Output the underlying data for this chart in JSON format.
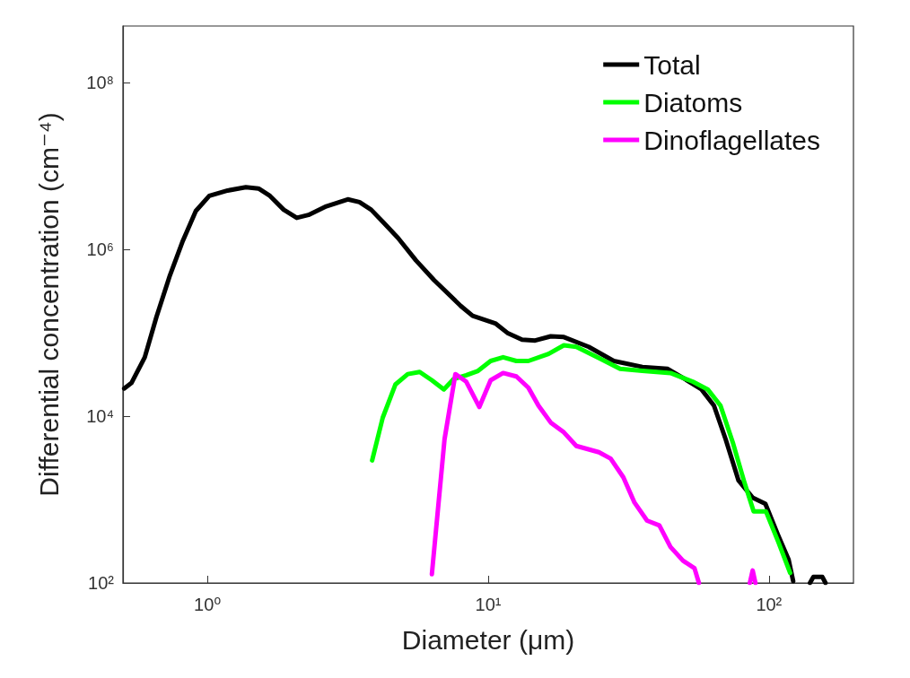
{
  "chart_data": {
    "type": "line",
    "xlabel": "Diameter (μm)",
    "ylabel": "Differential concentration (cm⁻⁴)",
    "log": "xy",
    "xlim": [
      0.5,
      200
    ],
    "ylim": [
      100,
      480000000
    ],
    "xticks": [
      {
        "value": 1,
        "label": "10⁰"
      },
      {
        "value": 10,
        "label": "10¹"
      },
      {
        "value": 100,
        "label": "10²"
      }
    ],
    "yticks": [
      {
        "value": 100,
        "label": "10²"
      },
      {
        "value": 10000,
        "label": "10⁴"
      },
      {
        "value": 1000000,
        "label": "10⁶"
      },
      {
        "value": 100000000,
        "label": "10⁸"
      }
    ],
    "grid": false,
    "legend": "top right",
    "marker": "none",
    "line_style": "solid",
    "series": [
      {
        "name": "Total",
        "color": "#000000",
        "x": [
          0.505,
          0.536,
          0.598,
          0.658,
          0.735,
          0.814,
          0.909,
          1.015,
          1.18,
          1.37,
          1.52,
          1.67,
          1.87,
          2.08,
          2.29,
          2.65,
          3.16,
          3.48,
          3.83,
          4.24,
          4.77,
          5.53,
          6.41,
          7.99,
          8.8,
          10.6,
          11.7,
          13.2,
          14.7,
          16.7,
          18.6,
          22.8,
          28.0,
          35.4,
          43.6,
          51,
          57.5,
          63.7,
          70.1,
          77.9,
          87.6,
          97.1,
          107.6,
          117.5,
          122,
          130,
          140,
          144,
          155,
          159
        ],
        "values": [
          21500,
          25000,
          51000,
          155000,
          490000,
          1230000,
          2900000,
          4400000,
          5100000,
          5600000,
          5400000,
          4400000,
          3000000,
          2400000,
          2600000,
          3300000,
          4000000,
          3700000,
          3000000,
          2100000,
          1380000,
          740000,
          430000,
          210000,
          160000,
          130000,
          100000,
          83000,
          81000,
          91000,
          89000,
          68000,
          46000,
          39000,
          37000,
          27000,
          21000,
          13400,
          5300,
          1700,
          1050,
          890,
          380,
          190,
          105,
          null,
          100,
          118,
          118,
          100
        ]
      },
      {
        "name": "Diatoms",
        "color": "#00ff00",
        "x": [
          3.86,
          4.21,
          4.67,
          5.17,
          5.7,
          6.3,
          6.95,
          7.54,
          8.35,
          9.2,
          10.2,
          11.3,
          12.6,
          13.9,
          16.4,
          18.6,
          20.6,
          24.8,
          29.5,
          35.4,
          44.6,
          53.5,
          60.5,
          67.2,
          74.4,
          81.8,
          88.2,
          97.6,
          108,
          119
        ],
        "values": [
          2950,
          9600,
          24000,
          32000,
          34000,
          27000,
          21000,
          28000,
          31000,
          35000,
          46000,
          51000,
          46000,
          46000,
          56000,
          71000,
          68000,
          50000,
          37000,
          35000,
          33000,
          26000,
          21000,
          13400,
          4800,
          1600,
          720,
          720,
          310,
          132
        ]
      },
      {
        "name": "Dinoflagellates",
        "color": "#ff00ff",
        "x": [
          6.3,
          6.99,
          7.64,
          8.35,
          9.3,
          10.2,
          11.3,
          12.6,
          13.9,
          15.1,
          16.7,
          18.6,
          20.6,
          24.8,
          27.3,
          30.3,
          33.2,
          36.8,
          40.7,
          44.6,
          49.4,
          54.3,
          56.3,
          70,
          85.5,
          87.5,
          89.5
        ],
        "values": [
          127,
          5300,
          32000,
          26000,
          12900,
          27000,
          33000,
          30000,
          22000,
          13400,
          8400,
          6400,
          4400,
          3700,
          3100,
          1850,
          920,
          560,
          490,
          270,
          185,
          150,
          100,
          null,
          100,
          141,
          100
        ]
      }
    ]
  }
}
